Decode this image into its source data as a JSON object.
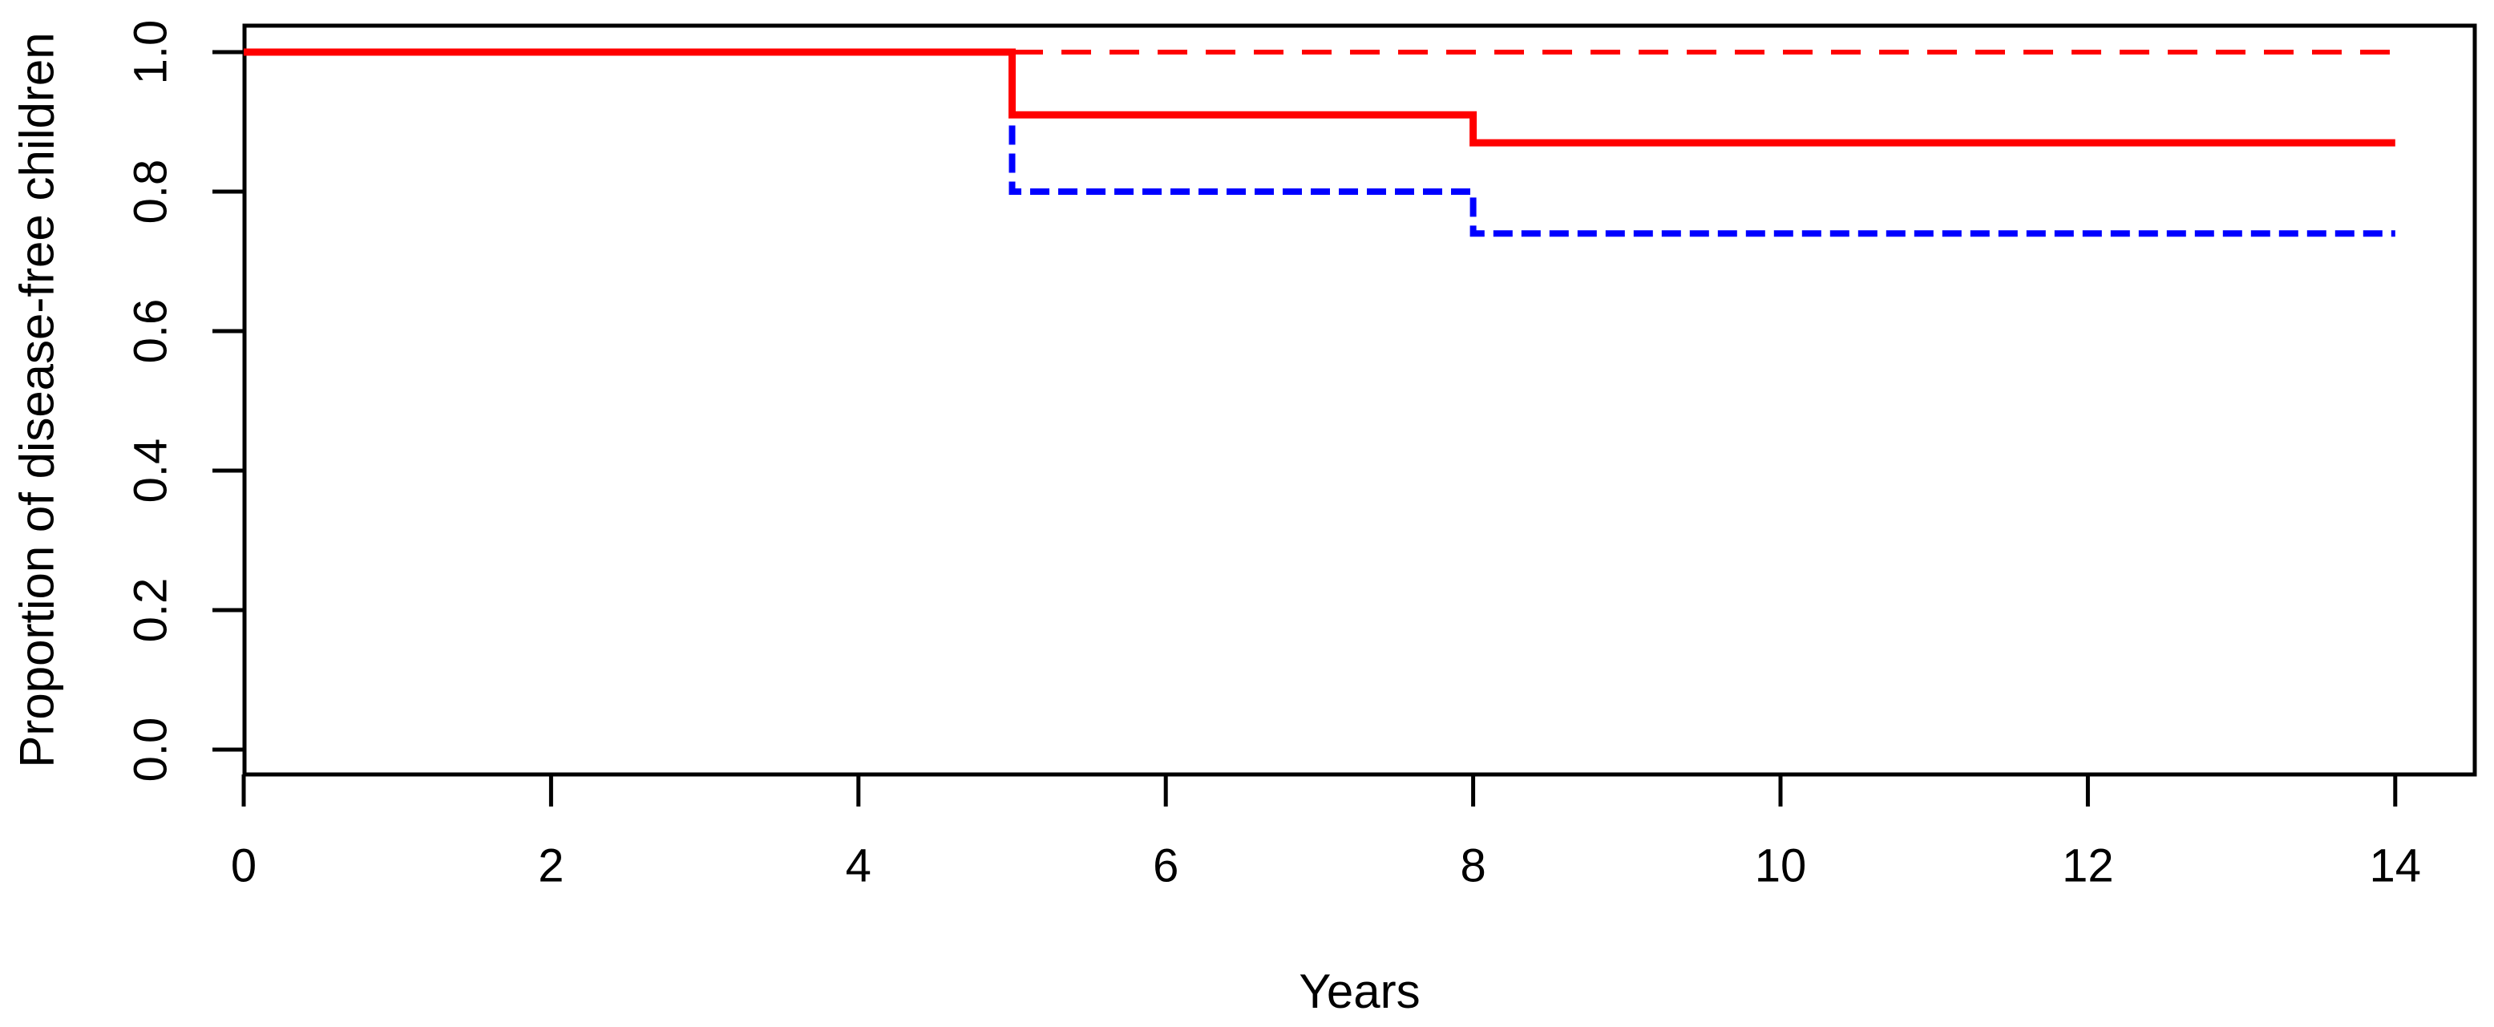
{
  "figure": {
    "background": "#ffffff",
    "axis_color": "#000000",
    "x_axis": {
      "label": "Years",
      "tick_labels": [
        "0",
        "2",
        "4",
        "6",
        "8",
        "10",
        "12",
        "14"
      ],
      "tick_values": [
        0,
        2,
        4,
        6,
        8,
        10,
        12,
        14
      ]
    },
    "y_axis": {
      "label": "Proportion of disease-free children",
      "tick_labels": [
        "0.0",
        "0.2",
        "0.4",
        "0.6",
        "0.8",
        "1.0"
      ],
      "tick_values": [
        0.0,
        0.2,
        0.4,
        0.6,
        0.8,
        1.0
      ]
    }
  },
  "chart_data": {
    "type": "line",
    "subtype": "kaplan-meier-step",
    "title": "",
    "xlabel": "Years",
    "ylabel": "Proportion of disease-free children",
    "xlim": [
      0,
      14
    ],
    "ylim": [
      0.0,
      1.0
    ],
    "x_ticks": [
      0,
      2,
      4,
      6,
      8,
      10,
      12,
      14
    ],
    "y_ticks": [
      0.0,
      0.2,
      0.4,
      0.6,
      0.8,
      1.0
    ],
    "grid": false,
    "legend": "none",
    "step_times_years": [
      5,
      8
    ],
    "series": [
      {
        "name": "red-dashed-curve",
        "color": "#ff0000",
        "style": "dashed",
        "width": 6,
        "dash": "37 23",
        "points": [
          [
            0,
            1.0
          ],
          [
            14,
            1.0
          ]
        ]
      },
      {
        "name": "blue-dashed-curve",
        "color": "#0000ff",
        "style": "dashed",
        "width": 8,
        "dash": "24 11",
        "points": [
          [
            0,
            1.0
          ],
          [
            5,
            1.0
          ],
          [
            5,
            0.8
          ],
          [
            8,
            0.8
          ],
          [
            8,
            0.74
          ],
          [
            14,
            0.74
          ]
        ]
      },
      {
        "name": "red-solid-curve",
        "color": "#ff0000",
        "style": "solid",
        "width": 9,
        "dash": "",
        "points": [
          [
            0,
            1.0
          ],
          [
            5,
            1.0
          ],
          [
            5,
            0.91
          ],
          [
            8,
            0.91
          ],
          [
            8,
            0.87
          ],
          [
            14,
            0.87
          ]
        ]
      }
    ]
  }
}
